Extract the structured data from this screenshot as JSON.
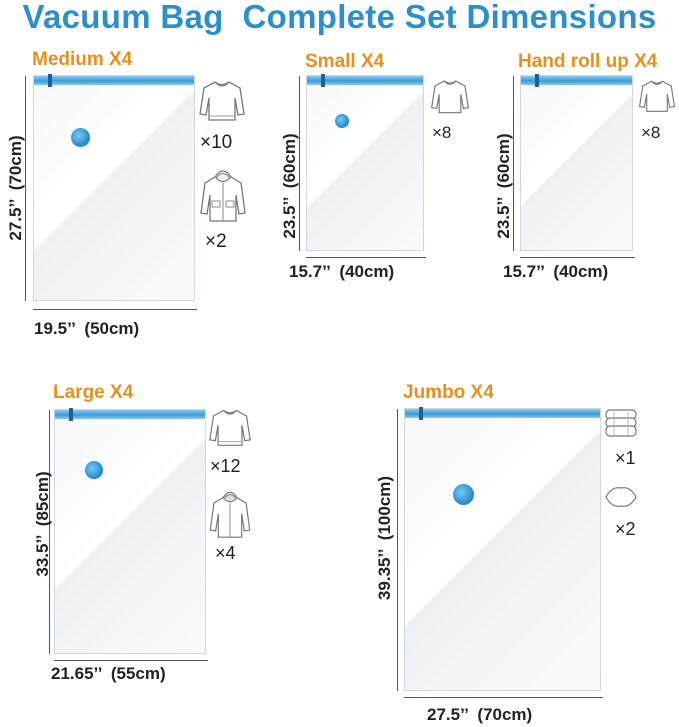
{
  "title": "Vacuum Bag  Complete Set Dimensions",
  "bags": {
    "medium": {
      "label": "Medium X4",
      "height": "27.5’’  (70cm)",
      "width": "19.5’’  (50cm)",
      "sweater_qty": "×10",
      "jacket_qty": "×2"
    },
    "small": {
      "label": "Small X4",
      "height": "23.5’’  (60cm)",
      "width": "15.7’’  (40cm)",
      "sweater_qty": "×8"
    },
    "hand": {
      "label": "Hand roll up X4",
      "height": "23.5’’  (60cm)",
      "width": "15.7’’  (40cm)",
      "sweater_qty": "×8"
    },
    "large": {
      "label": "Large X4",
      "height": "33.5’’  (85cm)",
      "width": "21.65’’  (55cm)",
      "sweater_qty": "×12",
      "jacket_qty": "×4"
    },
    "jumbo": {
      "label": "Jumbo X4",
      "height": "39.35’’  (100cm)",
      "width": "27.5’’  (70cm)",
      "comforter_qty": "×1",
      "pillow_qty": "×2"
    }
  },
  "icons": [
    "sweater-icon",
    "hooded-jacket-icon",
    "folded-comforter-icon",
    "pillow-icon"
  ],
  "colors": {
    "title": "#2b8fc9",
    "label": "#e88f1c",
    "zipper": "#3a9bd8",
    "valve": "#2a8fd4"
  }
}
